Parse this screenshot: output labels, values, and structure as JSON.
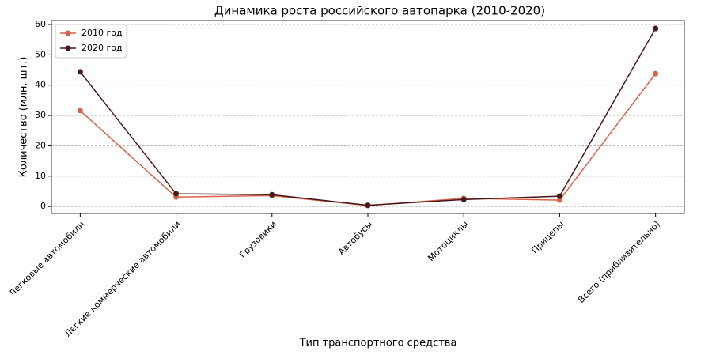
{
  "chart_data": {
    "type": "line",
    "title": "Динамика роста российского автопарка (2010-2020)",
    "xlabel": "Тип транспортного средства",
    "ylabel": "Количество (млн. шт.)",
    "categories": [
      "Легковые автомобили",
      "Легкие коммерческие автомобили",
      "Грузовики",
      "Автобусы",
      "Мотоциклы",
      "Прицепы",
      "Всего (приблизительно)"
    ],
    "series": [
      {
        "name": "2010 год",
        "color": "#d9624b",
        "values": [
          31.6,
          3.1,
          3.6,
          0.3,
          2.7,
          2.1,
          43.8
        ]
      },
      {
        "name": "2020 год",
        "color": "#4a1818",
        "values": [
          44.4,
          4.2,
          3.9,
          0.4,
          2.3,
          3.4,
          58.7
        ]
      }
    ],
    "ylim": [
      -2.3,
      61.3
    ],
    "yticks": [
      0,
      10,
      20,
      30,
      40,
      50,
      60
    ],
    "grid": true,
    "legend": "upper-left"
  }
}
